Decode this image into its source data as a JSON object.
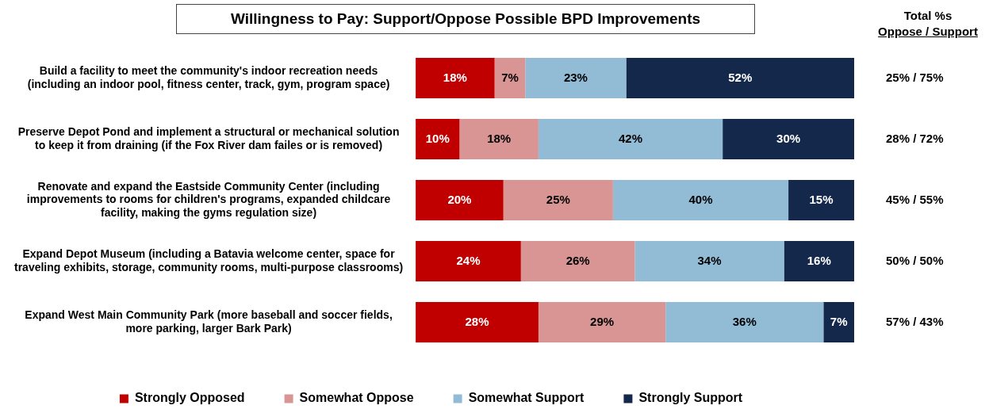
{
  "chart_data": {
    "type": "bar",
    "orientation": "horizontal",
    "stacked": true,
    "title": "Willingness to Pay:  Support/Oppose Possible BPD Improvements",
    "categories": [
      "Build a facility to meet the community's indoor recreation needs\n(including an indoor pool, fitness center, track, gym, program space)",
      "Preserve Depot Pond and implement a structural or mechanical solution\nto keep it from draining (if the Fox River dam failes or is removed)",
      "Renovate and expand the Eastside Community Center (including\nimprovements to rooms for children's programs, expanded childcare\nfacility, making the gyms regulation size)",
      "Expand Depot Museum (including a Batavia welcome center, space for\ntraveling exhibits, storage, community rooms, multi-purpose classrooms)",
      "Expand West Main Community Park (more baseball and soccer fields,\nmore parking, larger Bark Park)"
    ],
    "series": [
      {
        "name": "Strongly Opposed",
        "color": "#c00000",
        "values": [
          18,
          10,
          20,
          24,
          28
        ],
        "value_labels": [
          "18%",
          "10%",
          "20%",
          "24%",
          "28%"
        ]
      },
      {
        "name": "Somewhat Oppose",
        "color": "#d99594",
        "values": [
          7,
          18,
          25,
          26,
          29
        ],
        "value_labels": [
          "7%",
          "18%",
          "25%",
          "26%",
          "29%"
        ]
      },
      {
        "name": "Somewhat Support",
        "color": "#92bcd6",
        "values": [
          23,
          42,
          40,
          34,
          36
        ],
        "value_labels": [
          "23%",
          "42%",
          "40%",
          "34%",
          "36%"
        ]
      },
      {
        "name": "Strongly Support",
        "color": "#14284b",
        "values": [
          52,
          30,
          15,
          16,
          7
        ],
        "value_labels": [
          "52%",
          "30%",
          "15%",
          "16%",
          "7%"
        ]
      }
    ],
    "totals": [
      "25% / 75%",
      "28% / 72%",
      "45% / 55%",
      "50% / 50%",
      "57% / 43%"
    ],
    "annotations": [
      "Total %s",
      "Oppose / Support"
    ],
    "xlim": [
      0,
      100
    ],
    "tick_labels": "y",
    "legend": "bottom"
  }
}
